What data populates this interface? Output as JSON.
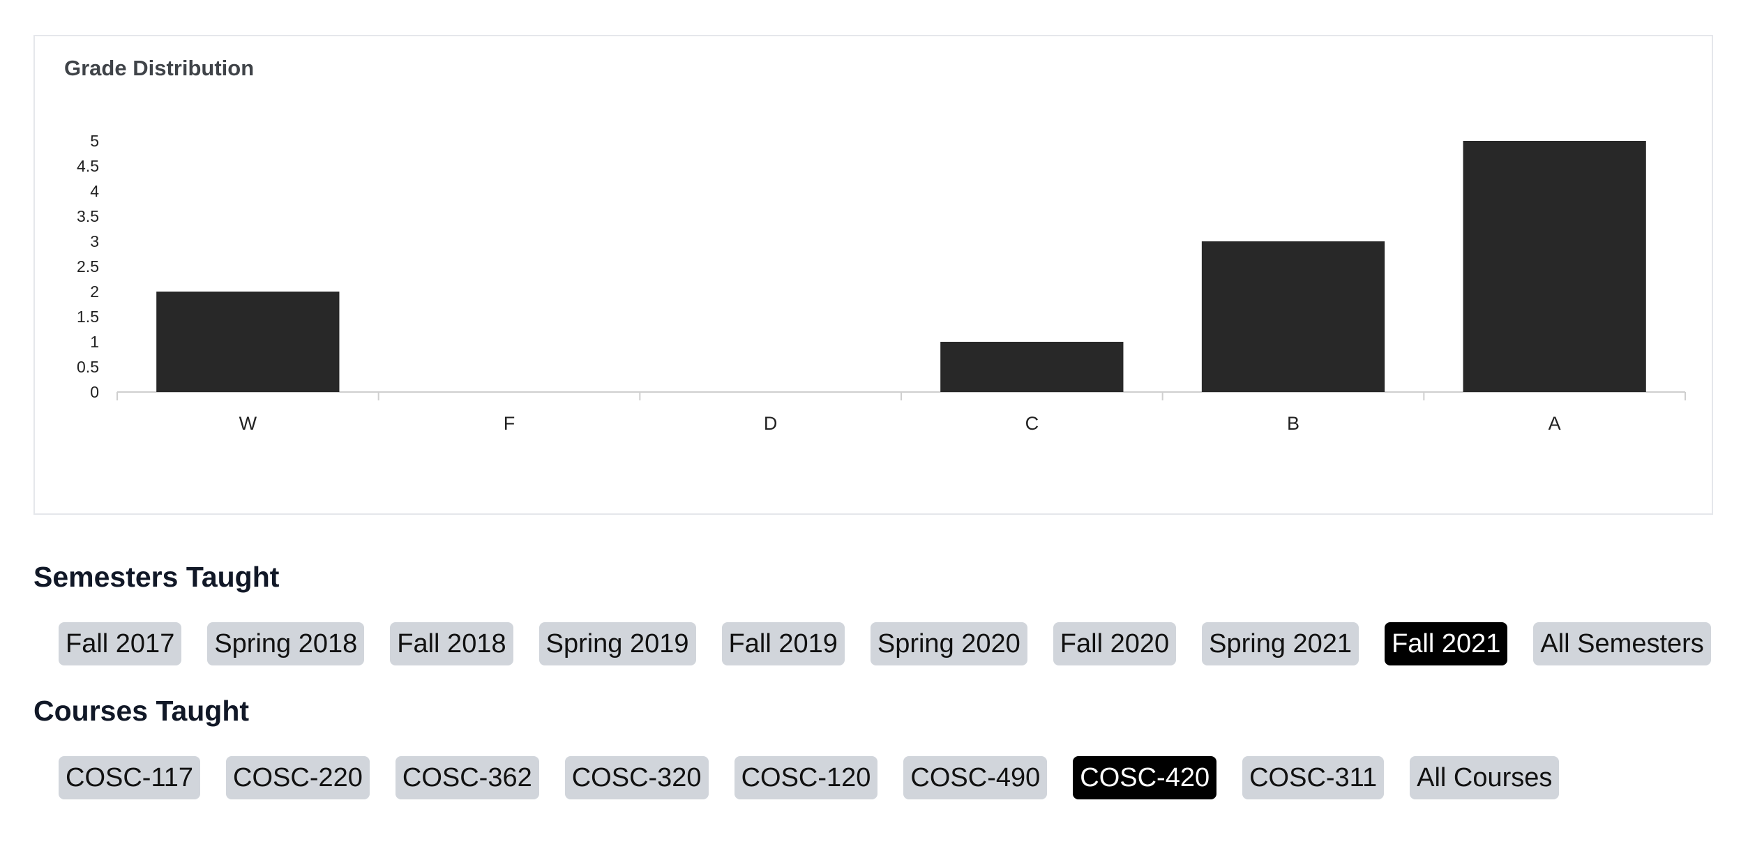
{
  "chart_card": {
    "title": "Grade Distribution"
  },
  "chart_data": {
    "type": "bar",
    "title": "Grade Distribution",
    "categories": [
      "W",
      "F",
      "D",
      "C",
      "B",
      "A"
    ],
    "values": [
      2,
      0,
      0,
      1,
      3,
      5
    ],
    "ylim": [
      0,
      5
    ],
    "yticks": [
      "0",
      "0.5",
      "1",
      "1.5",
      "2",
      "2.5",
      "3",
      "3.5",
      "4",
      "4.5",
      "5"
    ],
    "xlabel": "",
    "ylabel": "",
    "grid": false,
    "colors": {
      "bar": "#282828",
      "axis": "#cfcfcf",
      "tick_text": "#222222"
    }
  },
  "semesters": {
    "heading": "Semesters Taught",
    "items": [
      {
        "label": "Fall 2017",
        "active": false
      },
      {
        "label": "Spring 2018",
        "active": false
      },
      {
        "label": "Fall 2018",
        "active": false
      },
      {
        "label": "Spring 2019",
        "active": false
      },
      {
        "label": "Fall 2019",
        "active": false
      },
      {
        "label": "Spring 2020",
        "active": false
      },
      {
        "label": "Fall 2020",
        "active": false
      },
      {
        "label": "Spring 2021",
        "active": false
      },
      {
        "label": "Fall 2021",
        "active": true
      },
      {
        "label": "All Semesters",
        "active": false
      }
    ]
  },
  "courses": {
    "heading": "Courses Taught",
    "items": [
      {
        "label": "COSC-117",
        "active": false
      },
      {
        "label": "COSC-220",
        "active": false
      },
      {
        "label": "COSC-362",
        "active": false
      },
      {
        "label": "COSC-320",
        "active": false
      },
      {
        "label": "COSC-120",
        "active": false
      },
      {
        "label": "COSC-490",
        "active": false
      },
      {
        "label": "COSC-420",
        "active": true
      },
      {
        "label": "COSC-311",
        "active": false
      },
      {
        "label": "All Courses",
        "active": false
      }
    ]
  }
}
